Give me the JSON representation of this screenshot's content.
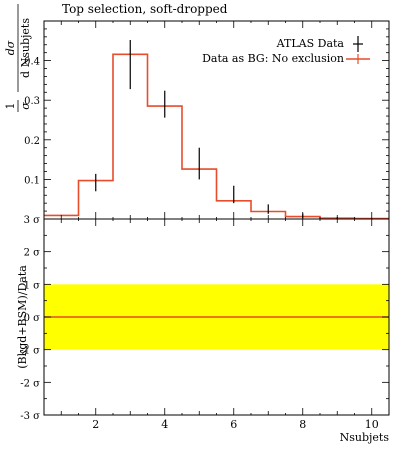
{
  "title": "Top selection, soft-dropped",
  "chart_data": [
    {
      "type": "line",
      "panel": "main",
      "xlabel": "Nsubjets",
      "ylabel": "1/σ dσ/d Nsubjets",
      "ylabel_parts": {
        "one": "1",
        "sigma": "σ",
        "dsigma": "dσ",
        "dvar": "d Nsubjets"
      },
      "xlim": [
        0.5,
        10.5
      ],
      "ylim": [
        0,
        0.5
      ],
      "y_ticks": [
        0.1,
        0.2,
        0.3,
        0.4
      ],
      "y_tick_labels": [
        "0.1",
        "0.2",
        "0.3",
        "0.4"
      ],
      "legend": {
        "placement": "top-right"
      },
      "series": [
        {
          "name": "ATLAS Data",
          "style": "points",
          "color": "#000000",
          "x": [
            2,
            3,
            4,
            5,
            6,
            7,
            8,
            9,
            10
          ],
          "y": [
            0.092,
            0.39,
            0.29,
            0.14,
            0.062,
            0.025,
            0.008,
            0.003,
            0.001
          ],
          "err": [
            0.022,
            0.062,
            0.034,
            0.04,
            0.022,
            0.012,
            0.006,
            0.002,
            0.001
          ]
        },
        {
          "name": "Data as BG: No exclusion",
          "style": "step",
          "color": "#e74c2b",
          "bin_edges": [
            0.5,
            1.5,
            2.5,
            3.5,
            4.5,
            5.5,
            6.5,
            7.5,
            8.5,
            9.5,
            10.5
          ],
          "values": [
            0.009,
            0.097,
            0.416,
            0.285,
            0.126,
            0.046,
            0.019,
            0.006,
            0.002,
            0.001
          ]
        }
      ]
    },
    {
      "type": "line",
      "panel": "ratio",
      "xlabel": "Nsubjets",
      "ylabel": "(Bkgd+BSM)/Data",
      "xlim": [
        0.5,
        10.5
      ],
      "ylim": [
        -3,
        3
      ],
      "y_ticks": [
        -3,
        -2,
        -1,
        0,
        1,
        2,
        3
      ],
      "y_tick_labels": [
        "-3 σ",
        "-2 σ",
        "-1 σ",
        "0 σ",
        "1 σ",
        "2 σ",
        "3 σ"
      ],
      "x_ticks": [
        2,
        4,
        6,
        8,
        10
      ],
      "x_tick_labels": [
        "2",
        "4",
        "6",
        "8",
        "10"
      ],
      "band": {
        "lower": -1,
        "upper": 1,
        "color": "#ffff00"
      },
      "series": [
        {
          "name": "Data as BG: No exclusion",
          "color": "#e74c2b",
          "x": [
            0.5,
            10.5
          ],
          "y": [
            0,
            0
          ]
        }
      ]
    }
  ]
}
